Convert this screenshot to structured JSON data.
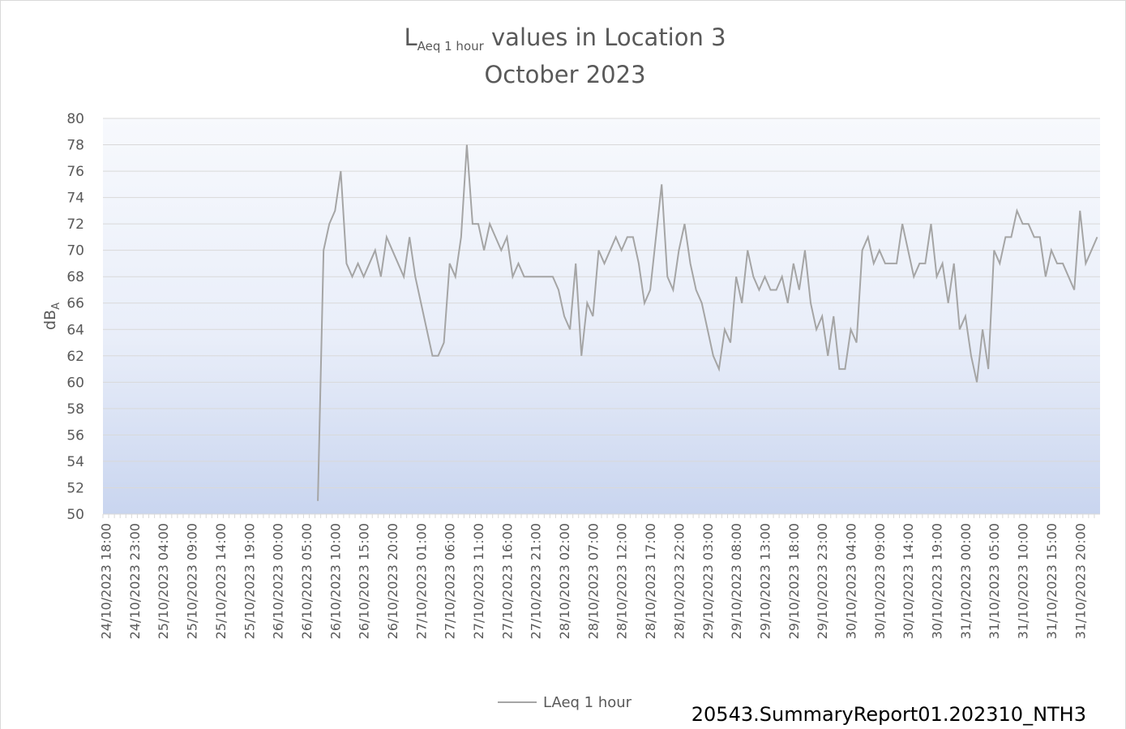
{
  "chart_data": {
    "type": "line",
    "title_main": "L",
    "title_sub": "Aeq 1 hour",
    "title_rest": " values in Location 3",
    "subtitle": "October 2023",
    "ylabel_main": "dB",
    "ylabel_sub": "A",
    "footer": "20543.SummaryReport01.202310_NTH3",
    "ylim": [
      50,
      80
    ],
    "yticks": [
      50,
      52,
      54,
      56,
      58,
      60,
      62,
      64,
      66,
      68,
      70,
      72,
      74,
      76,
      78,
      80
    ],
    "grid": true,
    "legend": "bottom",
    "categories": [
      "24/10/2023 18:00",
      null,
      null,
      null,
      null,
      "24/10/2023 23:00",
      null,
      null,
      null,
      null,
      "25/10/2023 04:00",
      null,
      null,
      null,
      null,
      "25/10/2023 09:00",
      null,
      null,
      null,
      null,
      "25/10/2023 14:00",
      null,
      null,
      null,
      null,
      "25/10/2023 19:00",
      null,
      null,
      null,
      null,
      "26/10/2023 00:00",
      null,
      null,
      null,
      null,
      "26/10/2023 05:00",
      null,
      null,
      null,
      null,
      "26/10/2023 10:00",
      null,
      null,
      null,
      null,
      "26/10/2023 15:00",
      null,
      null,
      null,
      null,
      "26/10/2023 20:00",
      null,
      null,
      null,
      null,
      "27/10/2023 01:00",
      null,
      null,
      null,
      null,
      "27/10/2023 06:00",
      null,
      null,
      null,
      null,
      "27/10/2023 11:00",
      null,
      null,
      null,
      null,
      "27/10/2023 16:00",
      null,
      null,
      null,
      null,
      "27/10/2023 21:00",
      null,
      null,
      null,
      null,
      "28/10/2023 02:00",
      null,
      null,
      null,
      null,
      "28/10/2023 07:00",
      null,
      null,
      null,
      null,
      "28/10/2023 12:00",
      null,
      null,
      null,
      null,
      "28/10/2023 17:00",
      null,
      null,
      null,
      null,
      "28/10/2023 22:00",
      null,
      null,
      null,
      null,
      "29/10/2023 03:00",
      null,
      null,
      null,
      null,
      "29/10/2023 08:00",
      null,
      null,
      null,
      null,
      "29/10/2023 13:00",
      null,
      null,
      null,
      null,
      "29/10/2023 18:00",
      null,
      null,
      null,
      null,
      "29/10/2023 23:00",
      null,
      null,
      null,
      null,
      "30/10/2023 04:00",
      null,
      null,
      null,
      null,
      "30/10/2023 09:00",
      null,
      null,
      null,
      null,
      "30/10/2023 14:00",
      null,
      null,
      null,
      null,
      "30/10/2023 19:00",
      null,
      null,
      null,
      null,
      "31/10/2023 00:00",
      null,
      null,
      null,
      null,
      "31/10/2023 05:00",
      null,
      null,
      null,
      null,
      "31/10/2023 10:00",
      null,
      null,
      null,
      null,
      "31/10/2023 15:00",
      null,
      null,
      null,
      null,
      "31/10/2023 20:00",
      null,
      null,
      null
    ],
    "series": [
      {
        "name": "LAeq 1 hour",
        "color": "#a5a5a5",
        "values": [
          null,
          null,
          null,
          null,
          null,
          null,
          null,
          null,
          null,
          null,
          null,
          null,
          null,
          null,
          null,
          null,
          null,
          null,
          null,
          null,
          null,
          null,
          null,
          null,
          null,
          null,
          null,
          null,
          null,
          null,
          null,
          null,
          null,
          null,
          null,
          null,
          null,
          51,
          70,
          72,
          73,
          76,
          69,
          68,
          69,
          68,
          69,
          70,
          68,
          71,
          70,
          69,
          68,
          71,
          68,
          66,
          64,
          62,
          62,
          63,
          69,
          68,
          71,
          78,
          72,
          72,
          70,
          72,
          71,
          70,
          71,
          68,
          69,
          68,
          68,
          68,
          68,
          68,
          68,
          67,
          65,
          64,
          69,
          62,
          66,
          65,
          70,
          69,
          70,
          71,
          70,
          71,
          71,
          69,
          66,
          67,
          71,
          75,
          68,
          67,
          70,
          72,
          69,
          67,
          66,
          64,
          62,
          61,
          64,
          63,
          68,
          66,
          70,
          68,
          67,
          68,
          67,
          67,
          68,
          66,
          69,
          67,
          70,
          66,
          64,
          65,
          62,
          65,
          61,
          61,
          64,
          63,
          70,
          71,
          69,
          70,
          69,
          69,
          69,
          72,
          70,
          68,
          69,
          69,
          72,
          68,
          69,
          66,
          69,
          64,
          65,
          62,
          60,
          64,
          61,
          70,
          69,
          71,
          71,
          73,
          72,
          72,
          71,
          71,
          68,
          70,
          69,
          69,
          68,
          67,
          73,
          69,
          70,
          71
        ]
      }
    ]
  }
}
